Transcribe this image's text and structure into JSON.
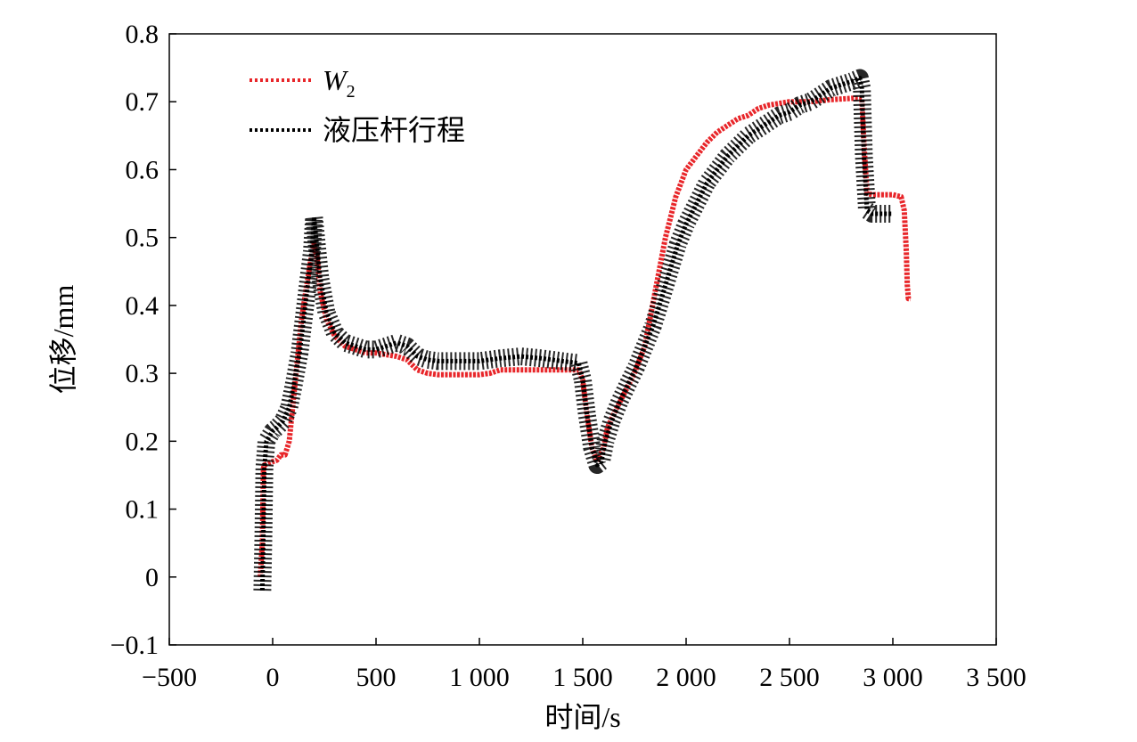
{
  "chart_data": {
    "type": "line",
    "title": "",
    "xlabel": "时间/s",
    "ylabel": "位移/mm",
    "xlim": [
      -500,
      3500
    ],
    "ylim": [
      -0.1,
      0.8
    ],
    "x_ticks": [
      -500,
      0,
      500,
      1000,
      1500,
      2000,
      2500,
      3000,
      3500
    ],
    "x_tick_labels": [
      "−500",
      "0",
      "500",
      "1 000",
      "1 500",
      "2 000",
      "2 500",
      "3 000",
      "3 500"
    ],
    "y_ticks": [
      -0.1,
      0,
      0.1,
      0.2,
      0.3,
      0.4,
      0.5,
      0.6,
      0.7,
      0.8
    ],
    "y_tick_labels": [
      "−0.1",
      "0",
      "0.1",
      "0.2",
      "0.3",
      "0.4",
      "0.5",
      "0.6",
      "0.7",
      "0.8"
    ],
    "grid": false,
    "legend_position": "top-left",
    "series": [
      {
        "name": "W2",
        "name_main": "W",
        "name_sub": "2",
        "color": "#e8262a",
        "style": "dotted",
        "points": [
          [
            -60,
            0.0
          ],
          [
            -50,
            0.05
          ],
          [
            -45,
            0.16
          ],
          [
            -40,
            0.165
          ],
          [
            0,
            0.17
          ],
          [
            20,
            0.172
          ],
          [
            40,
            0.18
          ],
          [
            60,
            0.18
          ],
          [
            80,
            0.2
          ],
          [
            100,
            0.26
          ],
          [
            120,
            0.32
          ],
          [
            140,
            0.38
          ],
          [
            160,
            0.42
          ],
          [
            180,
            0.46
          ],
          [
            200,
            0.49
          ],
          [
            215,
            0.47
          ],
          [
            230,
            0.42
          ],
          [
            260,
            0.38
          ],
          [
            300,
            0.355
          ],
          [
            350,
            0.34
          ],
          [
            400,
            0.335
          ],
          [
            450,
            0.33
          ],
          [
            500,
            0.33
          ],
          [
            600,
            0.325
          ],
          [
            650,
            0.32
          ],
          [
            700,
            0.305
          ],
          [
            750,
            0.3
          ],
          [
            800,
            0.298
          ],
          [
            900,
            0.298
          ],
          [
            1000,
            0.298
          ],
          [
            1050,
            0.3
          ],
          [
            1100,
            0.305
          ],
          [
            1200,
            0.305
          ],
          [
            1300,
            0.305
          ],
          [
            1400,
            0.305
          ],
          [
            1480,
            0.305
          ],
          [
            1500,
            0.29
          ],
          [
            1520,
            0.24
          ],
          [
            1545,
            0.19
          ],
          [
            1570,
            0.17
          ],
          [
            1600,
            0.19
          ],
          [
            1620,
            0.22
          ],
          [
            1650,
            0.24
          ],
          [
            1700,
            0.27
          ],
          [
            1750,
            0.3
          ],
          [
            1800,
            0.34
          ],
          [
            1850,
            0.42
          ],
          [
            1900,
            0.5
          ],
          [
            1950,
            0.56
          ],
          [
            2000,
            0.6
          ],
          [
            2050,
            0.62
          ],
          [
            2100,
            0.64
          ],
          [
            2150,
            0.655
          ],
          [
            2200,
            0.665
          ],
          [
            2250,
            0.675
          ],
          [
            2300,
            0.68
          ],
          [
            2350,
            0.69
          ],
          [
            2400,
            0.695
          ],
          [
            2500,
            0.7
          ],
          [
            2600,
            0.7
          ],
          [
            2700,
            0.703
          ],
          [
            2800,
            0.705
          ],
          [
            2850,
            0.705
          ],
          [
            2860,
            0.64
          ],
          [
            2875,
            0.565
          ],
          [
            2900,
            0.563
          ],
          [
            3000,
            0.563
          ],
          [
            3040,
            0.56
          ],
          [
            3055,
            0.54
          ],
          [
            3065,
            0.48
          ],
          [
            3070,
            0.43
          ],
          [
            3075,
            0.41
          ],
          [
            3085,
            0.41
          ]
        ]
      },
      {
        "name": "液压杆行程",
        "color": "#000000",
        "style": "dotted",
        "points": [
          [
            -50,
            -0.02
          ],
          [
            -45,
            0.06
          ],
          [
            -40,
            0.16
          ],
          [
            -30,
            0.2
          ],
          [
            0,
            0.215
          ],
          [
            20,
            0.22
          ],
          [
            50,
            0.23
          ],
          [
            80,
            0.25
          ],
          [
            100,
            0.28
          ],
          [
            130,
            0.33
          ],
          [
            150,
            0.38
          ],
          [
            170,
            0.43
          ],
          [
            190,
            0.48
          ],
          [
            200,
            0.53
          ],
          [
            210,
            0.5
          ],
          [
            230,
            0.44
          ],
          [
            260,
            0.39
          ],
          [
            300,
            0.36
          ],
          [
            350,
            0.345
          ],
          [
            400,
            0.34
          ],
          [
            450,
            0.335
          ],
          [
            500,
            0.335
          ],
          [
            550,
            0.34
          ],
          [
            600,
            0.345
          ],
          [
            650,
            0.34
          ],
          [
            700,
            0.325
          ],
          [
            750,
            0.32
          ],
          [
            800,
            0.318
          ],
          [
            900,
            0.318
          ],
          [
            1000,
            0.318
          ],
          [
            1100,
            0.322
          ],
          [
            1200,
            0.325
          ],
          [
            1300,
            0.322
          ],
          [
            1400,
            0.318
          ],
          [
            1480,
            0.315
          ],
          [
            1500,
            0.29
          ],
          [
            1520,
            0.24
          ],
          [
            1545,
            0.19
          ],
          [
            1570,
            0.165
          ],
          [
            1590,
            0.17
          ],
          [
            1610,
            0.2
          ],
          [
            1640,
            0.23
          ],
          [
            1680,
            0.26
          ],
          [
            1720,
            0.285
          ],
          [
            1760,
            0.31
          ],
          [
            1800,
            0.34
          ],
          [
            1840,
            0.37
          ],
          [
            1880,
            0.41
          ],
          [
            1920,
            0.45
          ],
          [
            1960,
            0.49
          ],
          [
            2000,
            0.52
          ],
          [
            2050,
            0.55
          ],
          [
            2100,
            0.58
          ],
          [
            2150,
            0.6
          ],
          [
            2200,
            0.62
          ],
          [
            2250,
            0.635
          ],
          [
            2300,
            0.65
          ],
          [
            2350,
            0.66
          ],
          [
            2400,
            0.67
          ],
          [
            2450,
            0.68
          ],
          [
            2500,
            0.685
          ],
          [
            2550,
            0.695
          ],
          [
            2600,
            0.7
          ],
          [
            2650,
            0.71
          ],
          [
            2700,
            0.72
          ],
          [
            2750,
            0.725
          ],
          [
            2800,
            0.73
          ],
          [
            2840,
            0.735
          ],
          [
            2850,
            0.72
          ],
          [
            2860,
            0.62
          ],
          [
            2875,
            0.54
          ],
          [
            2900,
            0.535
          ],
          [
            2950,
            0.535
          ],
          [
            3000,
            0.535
          ]
        ]
      }
    ]
  }
}
